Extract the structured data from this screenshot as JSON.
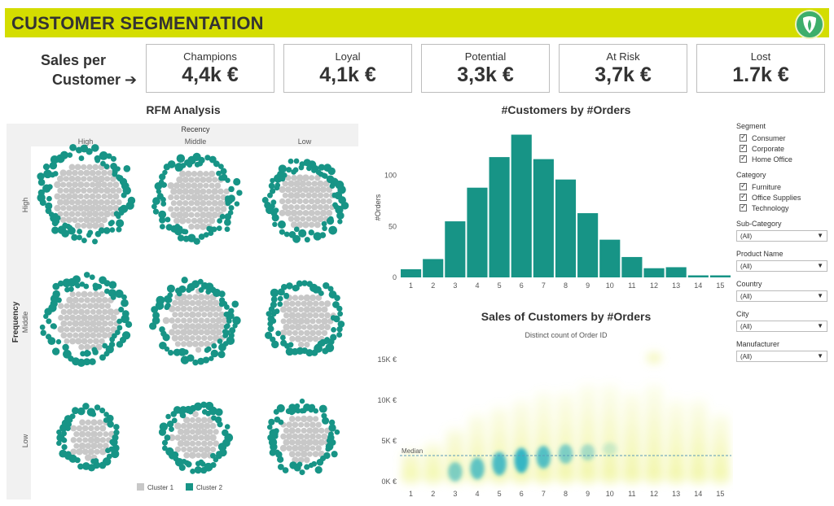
{
  "header": {
    "title": "CUSTOMER SEGMENTATION",
    "logo_icon": "leaf-shield-icon",
    "color": "#d4dd00"
  },
  "sales_per_customer": {
    "line1": "Sales per",
    "line2": "Customer ➔"
  },
  "kpis": [
    {
      "label": "Champions",
      "value": "4,4k €"
    },
    {
      "label": "Loyal",
      "value": "4,1k €"
    },
    {
      "label": "Potential",
      "value": "3,3k €"
    },
    {
      "label": "At Risk",
      "value": "3,7k €"
    },
    {
      "label": "Lost",
      "value": "1.7k €"
    }
  ],
  "rfm": {
    "title": "RFM Analysis",
    "recency_label": "Recency",
    "frequency_label": "Frequency",
    "recency_levels": [
      "High",
      "Middle",
      "Low"
    ],
    "frequency_levels": [
      "High",
      "Middle",
      "Low"
    ],
    "legend": [
      {
        "label": "Cluster 1",
        "color": "#c8c8c8"
      },
      {
        "label": "Cluster 2",
        "color": "#179486"
      }
    ]
  },
  "chart_data": [
    {
      "type": "bar",
      "title": "#Customers by #Orders",
      "ylabel": "#Orders",
      "categories": [
        1,
        2,
        3,
        4,
        5,
        6,
        7,
        8,
        9,
        10,
        11,
        12,
        13,
        14,
        15
      ],
      "values": [
        8,
        18,
        55,
        88,
        118,
        140,
        116,
        96,
        63,
        37,
        20,
        9,
        10,
        2,
        2
      ],
      "yticks": [
        0,
        50,
        100
      ],
      "ylim": [
        0,
        150
      ],
      "color": "#179486"
    },
    {
      "type": "heatmap",
      "title": "Sales of Customers by #Orders",
      "subtitle": "Distinct count of Order ID",
      "x": [
        1,
        2,
        3,
        4,
        5,
        6,
        7,
        8,
        9,
        10,
        11,
        12,
        13,
        14,
        15
      ],
      "yticks": [
        "0K €",
        "5K €",
        "10K €",
        "15K €"
      ],
      "ylim": [
        0,
        16000
      ],
      "median_label": "Median",
      "median_value": 3200,
      "hot_cells": [
        {
          "x": 3,
          "y": 1200,
          "intensity": 0.6
        },
        {
          "x": 4,
          "y": 1600,
          "intensity": 0.75
        },
        {
          "x": 5,
          "y": 2200,
          "intensity": 0.85
        },
        {
          "x": 6,
          "y": 2600,
          "intensity": 0.95
        },
        {
          "x": 7,
          "y": 3000,
          "intensity": 0.8
        },
        {
          "x": 8,
          "y": 3400,
          "intensity": 0.6
        },
        {
          "x": 9,
          "y": 3600,
          "intensity": 0.4
        },
        {
          "x": 10,
          "y": 4000,
          "intensity": 0.2
        }
      ]
    }
  ],
  "filters": {
    "segment": {
      "title": "Segment",
      "items": [
        "Consumer",
        "Corporate",
        "Home Office"
      ]
    },
    "category": {
      "title": "Category",
      "items": [
        "Furniture",
        "Office Supplies",
        "Technology"
      ]
    },
    "dropdowns": [
      {
        "title": "Sub-Category",
        "value": "(All)"
      },
      {
        "title": "Product Name",
        "value": "(All)"
      },
      {
        "title": "Country",
        "value": "(All)"
      },
      {
        "title": "City",
        "value": "(All)"
      },
      {
        "title": "Manufacturer",
        "value": "(All)"
      }
    ]
  }
}
